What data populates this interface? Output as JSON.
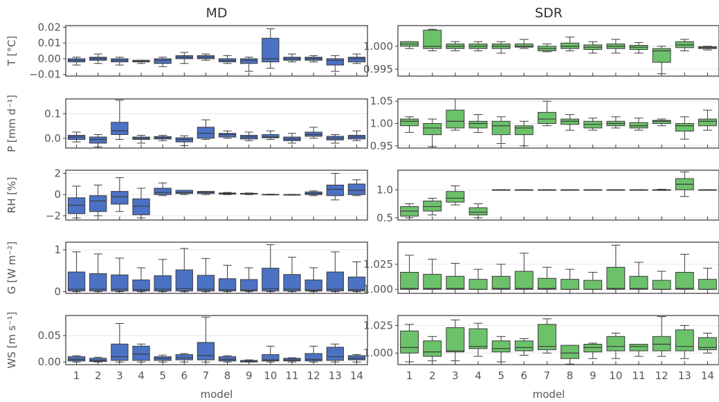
{
  "columns": {
    "left_title": "MD",
    "right_title": "SDR"
  },
  "x_label": "model",
  "colors": {
    "md": "#4c72c4",
    "sdr": "#6cc26a",
    "edge": "#3a3a3a"
  },
  "chart_data": [
    {
      "type": "box",
      "panel": "T-MD",
      "row": 0,
      "col": 0,
      "ylabel": "T [°C]",
      "ylim": [
        -0.011,
        0.021
      ],
      "yticks": [
        -0.01,
        0.0,
        0.01,
        0.02
      ],
      "yticklabels": [
        "−0.01",
        "0.00",
        "0.01",
        "0.02"
      ],
      "categories": [
        "1",
        "2",
        "3",
        "4",
        "5",
        "6",
        "7",
        "8",
        "9",
        "10",
        "11",
        "12",
        "13",
        "14"
      ],
      "boxes": [
        [
          -0.004,
          -0.002,
          -0.001,
          0.0,
          0.001
        ],
        [
          -0.003,
          -0.001,
          0.0,
          0.001,
          0.003
        ],
        [
          -0.004,
          -0.002,
          -0.001,
          0.0,
          0.001
        ],
        [
          -0.003,
          -0.002,
          -0.0015,
          -0.001,
          -0.001
        ],
        [
          -0.005,
          -0.003,
          -0.001,
          0.0,
          0.001
        ],
        [
          -0.003,
          0.0,
          0.001,
          0.002,
          0.004
        ],
        [
          -0.001,
          0.0,
          0.001,
          0.002,
          0.003
        ],
        [
          -0.003,
          -0.002,
          -0.001,
          0.0,
          0.002
        ],
        [
          -0.008,
          -0.003,
          -0.001,
          0.0,
          0.001
        ],
        [
          -0.006,
          -0.002,
          0.0,
          0.013,
          0.019
        ],
        [
          -0.002,
          -0.001,
          0.0,
          0.001,
          0.003
        ],
        [
          -0.002,
          -0.001,
          0.0,
          0.001,
          0.002
        ],
        [
          -0.008,
          -0.004,
          -0.001,
          0.0,
          0.002
        ],
        [
          -0.003,
          -0.002,
          0.0,
          0.001,
          0.003
        ]
      ]
    },
    {
      "type": "box",
      "panel": "T-SDR",
      "row": 0,
      "col": 1,
      "ylabel": "",
      "ylim": [
        0.9935,
        1.0045
      ],
      "yticks": [
        0.995,
        1.0
      ],
      "yticklabels": [
        "0.995",
        "1.000"
      ],
      "categories": [
        "1",
        "2",
        "3",
        "4",
        "5",
        "6",
        "7",
        "8",
        "9",
        "10",
        "11",
        "12",
        "13",
        "14"
      ],
      "boxes": [
        [
          0.9995,
          1.0,
          1.0005,
          1.001,
          1.001
        ],
        [
          0.999,
          0.9995,
          1.0,
          1.0035,
          1.0037
        ],
        [
          0.999,
          0.9995,
          1.0,
          1.0005,
          1.001
        ],
        [
          0.999,
          0.9995,
          1.0,
          1.0005,
          1.001
        ],
        [
          0.9985,
          0.9995,
          1.0,
          1.0005,
          1.001
        ],
        [
          0.9995,
          0.9998,
          1.0,
          1.0005,
          1.0015
        ],
        [
          0.9988,
          0.999,
          0.9995,
          1.0,
          1.0005
        ],
        [
          0.999,
          0.9995,
          1.0,
          1.0007,
          1.002
        ],
        [
          0.9985,
          0.9993,
          0.9998,
          1.0003,
          1.001
        ],
        [
          0.9985,
          0.9995,
          1.0,
          1.0005,
          1.0015
        ],
        [
          0.9985,
          0.9993,
          0.9998,
          1.0002,
          1.0008
        ],
        [
          0.994,
          0.9965,
          0.999,
          0.9995,
          1.0
        ],
        [
          0.999,
          0.9997,
          1.0003,
          1.001,
          1.0015
        ],
        [
          0.9992,
          0.9995,
          0.9997,
          0.9999,
          1.0
        ]
      ]
    },
    {
      "type": "box",
      "panel": "P-MD",
      "row": 1,
      "col": 0,
      "ylabel": "P [mm d⁻¹]",
      "ylim": [
        -0.04,
        0.16
      ],
      "yticks": [
        0.0,
        0.1
      ],
      "yticklabels": [
        "0.0",
        "0.1"
      ],
      "categories": [
        "1",
        "2",
        "3",
        "4",
        "5",
        "6",
        "7",
        "8",
        "9",
        "10",
        "11",
        "12",
        "13",
        "14"
      ],
      "boxes": [
        [
          -0.015,
          -0.005,
          0.005,
          0.012,
          0.025
        ],
        [
          -0.035,
          -0.02,
          -0.005,
          0.005,
          0.015
        ],
        [
          -0.005,
          0.015,
          0.03,
          0.065,
          0.155
        ],
        [
          -0.02,
          -0.005,
          0.0,
          0.005,
          0.012
        ],
        [
          -0.01,
          -0.003,
          0.002,
          0.007,
          0.012
        ],
        [
          -0.03,
          -0.015,
          -0.005,
          0.002,
          0.01
        ],
        [
          -0.005,
          0.0,
          0.02,
          0.045,
          0.075
        ],
        [
          0.0,
          0.005,
          0.015,
          0.02,
          0.03
        ],
        [
          -0.01,
          -0.003,
          0.005,
          0.012,
          0.025
        ],
        [
          -0.005,
          0.002,
          0.005,
          0.015,
          0.03
        ],
        [
          -0.02,
          -0.01,
          -0.003,
          0.005,
          0.02
        ],
        [
          0.0,
          0.008,
          0.015,
          0.025,
          0.045
        ],
        [
          -0.02,
          -0.007,
          0.0,
          0.008,
          0.015
        ],
        [
          -0.01,
          -0.003,
          0.005,
          0.012,
          0.03
        ]
      ]
    },
    {
      "type": "box",
      "panel": "P-SDR",
      "row": 1,
      "col": 1,
      "ylabel": "",
      "ylim": [
        0.945,
        1.055
      ],
      "yticks": [
        0.95,
        1.0,
        1.05
      ],
      "yticklabels": [
        "0.95",
        "1.00",
        "1.05"
      ],
      "categories": [
        "1",
        "2",
        "3",
        "4",
        "5",
        "6",
        "7",
        "8",
        "9",
        "10",
        "11",
        "12",
        "13",
        "14"
      ],
      "boxes": [
        [
          0.98,
          0.995,
          1.005,
          1.01,
          1.015
        ],
        [
          0.948,
          0.975,
          0.99,
          1.0,
          1.01
        ],
        [
          0.985,
          0.99,
          1.005,
          1.03,
          1.055
        ],
        [
          0.98,
          0.99,
          1.0,
          1.005,
          1.02
        ],
        [
          0.955,
          0.975,
          0.995,
          1.005,
          1.015
        ],
        [
          0.95,
          0.975,
          0.99,
          0.995,
          1.005
        ],
        [
          0.995,
          1.0,
          1.01,
          1.025,
          1.05
        ],
        [
          0.985,
          0.998,
          1.005,
          1.01,
          1.02
        ],
        [
          0.985,
          0.99,
          0.998,
          1.005,
          1.012
        ],
        [
          0.99,
          0.995,
          1.0,
          1.005,
          1.015
        ],
        [
          0.985,
          0.99,
          0.995,
          1.002,
          1.012
        ],
        [
          0.995,
          1.0,
          1.005,
          1.007,
          1.01
        ],
        [
          0.965,
          0.983,
          0.995,
          1.0,
          1.015
        ],
        [
          0.985,
          0.995,
          1.005,
          1.01,
          1.03
        ]
      ]
    },
    {
      "type": "box",
      "panel": "RH-MD",
      "row": 2,
      "col": 0,
      "ylabel": "RH [%]",
      "ylim": [
        -2.4,
        2.3
      ],
      "yticks": [
        -2,
        0,
        2
      ],
      "yticklabels": [
        "−2",
        "0",
        "2"
      ],
      "categories": [
        "1",
        "2",
        "3",
        "4",
        "5",
        "6",
        "7",
        "8",
        "9",
        "10",
        "11",
        "12",
        "13",
        "14"
      ],
      "boxes": [
        [
          -2.2,
          -1.8,
          -1.0,
          -0.3,
          0.8
        ],
        [
          -2.0,
          -1.6,
          -0.6,
          -0.1,
          0.9
        ],
        [
          -1.6,
          -0.9,
          -0.2,
          0.3,
          1.6
        ],
        [
          -2.2,
          -1.9,
          -1.1,
          -0.4,
          0.6
        ],
        [
          -0.1,
          0.0,
          0.2,
          0.6,
          1.1
        ],
        [
          0.0,
          0.1,
          0.2,
          0.4,
          0.4
        ],
        [
          0.0,
          0.1,
          0.2,
          0.3,
          0.3
        ],
        [
          0.0,
          0.05,
          0.1,
          0.15,
          0.2
        ],
        [
          0.0,
          0.05,
          0.08,
          0.12,
          0.15
        ],
        [
          -0.03,
          0.0,
          0.01,
          0.02,
          0.04
        ],
        [
          -0.06,
          -0.03,
          -0.01,
          0.0,
          0.02
        ],
        [
          -0.1,
          0.0,
          0.1,
          0.25,
          0.35
        ],
        [
          -0.5,
          -0.1,
          0.5,
          0.9,
          2.0
        ],
        [
          -0.1,
          0.0,
          0.4,
          1.0,
          1.4
        ]
      ]
    },
    {
      "type": "box",
      "panel": "RH-SDR",
      "row": 2,
      "col": 1,
      "ylabel": "",
      "ylim": [
        0.46,
        1.35
      ],
      "yticks": [
        0.5,
        1.0
      ],
      "yticklabels": [
        "0.5",
        "1.0"
      ],
      "categories": [
        "1",
        "2",
        "3",
        "4",
        "5",
        "6",
        "7",
        "8",
        "9",
        "10",
        "11",
        "12",
        "13",
        "14"
      ],
      "boxes": [
        [
          0.5,
          0.53,
          0.62,
          0.7,
          0.75
        ],
        [
          0.55,
          0.62,
          0.7,
          0.8,
          0.85
        ],
        [
          0.73,
          0.78,
          0.85,
          0.97,
          1.07
        ],
        [
          0.5,
          0.55,
          0.6,
          0.68,
          0.75
        ],
        [
          1.0,
          1.0,
          1.0,
          1.0,
          1.0
        ],
        [
          1.0,
          1.0,
          1.0,
          1.0,
          1.0
        ],
        [
          1.0,
          1.0,
          1.0,
          1.0,
          1.0
        ],
        [
          1.0,
          1.0,
          1.0,
          1.0,
          1.0
        ],
        [
          1.0,
          1.0,
          1.0,
          1.0,
          1.0
        ],
        [
          1.0,
          1.0,
          1.0,
          1.0,
          1.0
        ],
        [
          1.0,
          1.0,
          1.0,
          1.0,
          1.0
        ],
        [
          0.99,
          0.995,
          1.0,
          1.0,
          1.01
        ],
        [
          0.88,
          1.0,
          1.1,
          1.2,
          1.32
        ],
        [
          1.0,
          1.0,
          1.0,
          1.0,
          1.0
        ]
      ]
    },
    {
      "type": "box",
      "panel": "G-MD",
      "row": 3,
      "col": 0,
      "ylabel": "G [W m⁻²]",
      "ylim": [
        -0.04,
        1.18
      ],
      "yticks": [
        0,
        1
      ],
      "yticklabels": [
        "0",
        "1"
      ],
      "categories": [
        "1",
        "2",
        "3",
        "4",
        "5",
        "6",
        "7",
        "8",
        "9",
        "10",
        "11",
        "12",
        "13",
        "14"
      ],
      "boxes": [
        [
          0.0,
          0.02,
          0.06,
          0.47,
          0.95
        ],
        [
          0.0,
          0.02,
          0.06,
          0.43,
          0.9
        ],
        [
          0.0,
          0.02,
          0.06,
          0.4,
          0.8
        ],
        [
          0.0,
          0.02,
          0.05,
          0.28,
          0.57
        ],
        [
          0.0,
          0.02,
          0.06,
          0.38,
          0.77
        ],
        [
          0.0,
          0.02,
          0.07,
          0.52,
          1.03
        ],
        [
          0.0,
          0.02,
          0.06,
          0.39,
          0.79
        ],
        [
          0.0,
          0.02,
          0.05,
          0.31,
          0.63
        ],
        [
          0.0,
          0.02,
          0.04,
          0.29,
          0.57
        ],
        [
          0.0,
          0.02,
          0.07,
          0.56,
          1.12
        ],
        [
          0.0,
          0.02,
          0.06,
          0.41,
          0.82
        ],
        [
          0.0,
          0.02,
          0.04,
          0.28,
          0.57
        ],
        [
          0.0,
          0.02,
          0.06,
          0.47,
          0.95
        ],
        [
          0.0,
          0.02,
          0.05,
          0.35,
          0.71
        ]
      ]
    },
    {
      "type": "box",
      "panel": "G-SDR",
      "row": 3,
      "col": 1,
      "ylabel": "",
      "ylim": [
        0.996,
        1.047
      ],
      "yticks": [
        1.0,
        1.025
      ],
      "yticklabels": [
        "1.000",
        "1.025"
      ],
      "categories": [
        "1",
        "2",
        "3",
        "4",
        "5",
        "6",
        "7",
        "8",
        "9",
        "10",
        "11",
        "12",
        "13",
        "14"
      ],
      "boxes": [
        [
          1.0,
          1.0,
          1.001,
          1.017,
          1.034
        ],
        [
          1.0,
          1.0,
          1.001,
          1.015,
          1.03
        ],
        [
          1.0,
          1.0,
          1.001,
          1.013,
          1.026
        ],
        [
          1.0,
          1.0,
          1.0,
          1.01,
          1.02
        ],
        [
          1.0,
          1.0,
          1.001,
          1.013,
          1.025
        ],
        [
          1.0,
          1.0,
          1.001,
          1.018,
          1.036
        ],
        [
          1.0,
          1.0,
          1.001,
          1.011,
          1.022
        ],
        [
          1.0,
          1.0,
          1.0,
          1.01,
          1.02
        ],
        [
          1.0,
          1.0,
          1.0,
          1.009,
          1.017
        ],
        [
          1.0,
          1.0,
          1.001,
          1.022,
          1.044
        ],
        [
          1.0,
          1.0,
          1.001,
          1.013,
          1.027
        ],
        [
          1.0,
          1.0,
          1.0,
          1.009,
          1.018
        ],
        [
          1.0,
          1.0,
          1.001,
          1.017,
          1.035
        ],
        [
          1.0,
          1.0,
          1.0,
          1.01,
          1.021
        ]
      ]
    },
    {
      "type": "box",
      "panel": "WS-MD",
      "row": 4,
      "col": 0,
      "ylabel": "WS [m s⁻¹]",
      "ylim": [
        -0.005,
        0.088
      ],
      "yticks": [
        0.0,
        0.05
      ],
      "yticklabels": [
        "0.00",
        "0.05"
      ],
      "categories": [
        "1",
        "2",
        "3",
        "4",
        "5",
        "6",
        "7",
        "8",
        "9",
        "10",
        "11",
        "12",
        "13",
        "14"
      ],
      "boxes": [
        [
          0.0,
          0.002,
          0.005,
          0.01,
          0.012
        ],
        [
          0.0,
          0.001,
          0.003,
          0.007,
          0.009
        ],
        [
          0.0,
          0.003,
          0.01,
          0.034,
          0.073
        ],
        [
          0.0,
          0.003,
          0.015,
          0.03,
          0.034
        ],
        [
          0.0,
          0.003,
          0.007,
          0.01,
          0.013
        ],
        [
          0.0,
          0.004,
          0.008,
          0.014,
          0.016
        ],
        [
          0.0,
          0.004,
          0.012,
          0.037,
          0.085
        ],
        [
          0.0,
          0.002,
          0.005,
          0.01,
          0.012
        ],
        [
          0.0,
          0.0,
          0.001,
          0.003,
          0.004
        ],
        [
          0.0,
          0.002,
          0.004,
          0.014,
          0.03
        ],
        [
          0.0,
          0.002,
          0.004,
          0.007,
          0.008
        ],
        [
          0.0,
          0.002,
          0.005,
          0.016,
          0.03
        ],
        [
          0.0,
          0.003,
          0.01,
          0.028,
          0.034
        ],
        [
          0.0,
          0.004,
          0.007,
          0.012,
          0.014
        ]
      ]
    },
    {
      "type": "box",
      "panel": "WS-SDR",
      "row": 4,
      "col": 1,
      "ylabel": "",
      "ylim": [
        0.9895,
        1.034
      ],
      "yticks": [
        1.0,
        1.025
      ],
      "yticklabels": [
        "1.000",
        "1.025"
      ],
      "categories": [
        "1",
        "2",
        "3",
        "4",
        "5",
        "6",
        "7",
        "8",
        "9",
        "10",
        "11",
        "12",
        "13",
        "14"
      ],
      "boxes": [
        [
          0.992,
          1.0,
          1.005,
          1.02,
          1.026
        ],
        [
          0.993,
          0.997,
          1.001,
          1.011,
          1.015
        ],
        [
          0.993,
          1.001,
          1.002,
          1.023,
          1.03
        ],
        [
          0.997,
          1.004,
          1.006,
          1.022,
          1.027
        ],
        [
          0.992,
          1.001,
          1.004,
          1.011,
          1.015
        ],
        [
          0.998,
          1.002,
          1.005,
          1.011,
          1.013
        ],
        [
          1.0,
          1.003,
          1.006,
          1.026,
          1.031
        ],
        [
          0.99,
          0.995,
          1.0,
          1.007,
          1.007
        ],
        [
          0.995,
          1.001,
          1.005,
          1.008,
          1.009
        ],
        [
          0.995,
          1.002,
          1.006,
          1.015,
          1.018
        ],
        [
          0.997,
          1.002,
          1.006,
          1.008,
          1.008
        ],
        [
          0.997,
          1.002,
          1.008,
          1.015,
          1.033
        ],
        [
          0.995,
          1.002,
          1.006,
          1.021,
          1.025
        ],
        [
          1.0,
          1.003,
          1.005,
          1.014,
          1.018
        ]
      ]
    }
  ]
}
